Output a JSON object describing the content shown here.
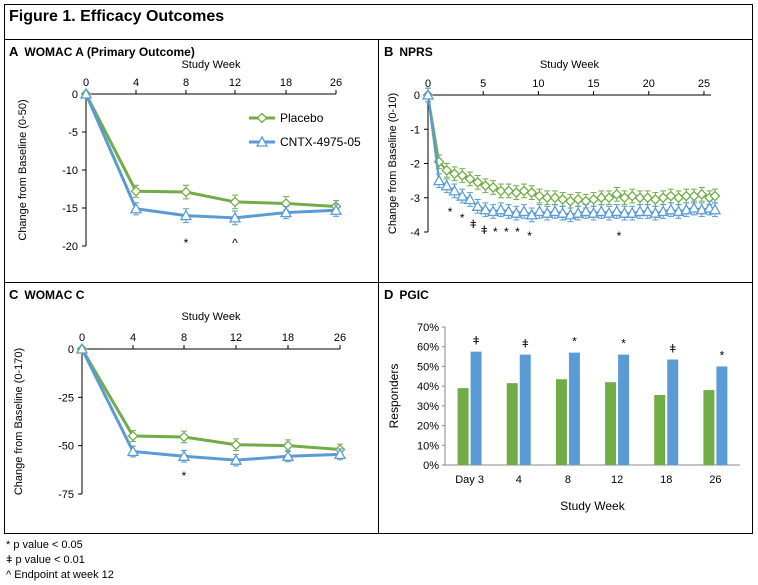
{
  "figure_title": "Figure 1. Efficacy Outcomes",
  "footnotes": [
    "* p value < 0.05",
    "ǂ p value < 0.01",
    "^ Endpoint at week 12"
  ],
  "colors": {
    "placebo": "#70ad47",
    "cntx": "#5b9bd5"
  },
  "panels": {
    "A": {
      "letter": "A",
      "title": "WOMAC A (Primary Outcome)"
    },
    "B": {
      "letter": "B",
      "title": "NPRS"
    },
    "C": {
      "letter": "C",
      "title": "WOMAC C"
    },
    "D": {
      "letter": "D",
      "title": "PGIC"
    }
  },
  "chart_data": [
    {
      "id": "A",
      "type": "line",
      "title": "WOMAC A (Primary Outcome)",
      "xlabel": "Study Week",
      "ylabel": "Change from Baseline (0-50)",
      "x": [
        0,
        4,
        8,
        12,
        18,
        26
      ],
      "x_ticks": [
        "0",
        "4",
        "8",
        "12",
        "18",
        "26"
      ],
      "y_ticks": [
        0,
        -5,
        -10,
        -15,
        -20
      ],
      "ylim": [
        -20,
        0
      ],
      "legend": "upper right inside plot",
      "series": [
        {
          "name": "Placebo",
          "color": "#70ad47",
          "marker": "diamond",
          "values": [
            0,
            -12.8,
            -12.9,
            -14.2,
            -14.4,
            -14.8
          ],
          "error": [
            0,
            0.8,
            0.9,
            0.9,
            0.9,
            0.8
          ]
        },
        {
          "name": "CNTX-4975-05",
          "color": "#5b9bd5",
          "marker": "triangle",
          "values": [
            0,
            -15.1,
            -16.0,
            -16.3,
            -15.6,
            -15.3
          ],
          "error": [
            0,
            0.8,
            0.9,
            0.9,
            0.8,
            0.8
          ]
        }
      ],
      "annotations": [
        {
          "x": 8,
          "text": "*"
        },
        {
          "x": 12,
          "text": "^"
        }
      ]
    },
    {
      "id": "B",
      "type": "line",
      "title": "NPRS",
      "xlabel": "Study Week",
      "ylabel": "Change from Baseline (0-10)",
      "x_ticks": [
        0,
        5,
        10,
        15,
        20,
        25
      ],
      "y_ticks": [
        0,
        -1,
        -2,
        -3,
        -4
      ],
      "ylim": [
        -4,
        0
      ],
      "xlim": [
        0,
        26
      ],
      "series": [
        {
          "name": "Placebo",
          "color": "#70ad47",
          "marker": "diamond",
          "x": [
            0,
            1,
            1.7,
            2.4,
            3.1,
            3.8,
            4.5,
            5.2,
            5.9,
            6.6,
            7.3,
            8,
            8.7,
            9.4,
            10.1,
            10.8,
            11.5,
            12.2,
            12.9,
            13.6,
            14.3,
            15,
            15.7,
            16.4,
            17.1,
            17.8,
            18.5,
            19.2,
            19.9,
            20.6,
            21.3,
            22,
            22.7,
            23.4,
            24.1,
            24.8,
            25.5,
            26
          ],
          "values": [
            0,
            -1.95,
            -2.2,
            -2.3,
            -2.35,
            -2.45,
            -2.55,
            -2.65,
            -2.7,
            -2.8,
            -2.8,
            -2.85,
            -2.8,
            -2.85,
            -2.95,
            -3.0,
            -3.0,
            -3.05,
            -3.1,
            -3.05,
            -3.1,
            -3.05,
            -3.0,
            -3.0,
            -2.9,
            -3.0,
            -2.95,
            -3.0,
            -3.0,
            -3.05,
            -3.0,
            -2.95,
            -3.0,
            -2.95,
            -2.95,
            -2.9,
            -3.0,
            -2.95
          ],
          "error": 0.2
        },
        {
          "name": "CNTX-4975-05",
          "color": "#5b9bd5",
          "marker": "triangle",
          "x": [
            0,
            1,
            1.7,
            2.4,
            3.1,
            3.8,
            4.5,
            5.2,
            5.9,
            6.6,
            7.3,
            8,
            8.7,
            9.4,
            10.1,
            10.8,
            11.5,
            12.2,
            12.9,
            13.6,
            14.3,
            15,
            15.7,
            16.4,
            17.1,
            17.8,
            18.5,
            19.2,
            19.9,
            20.6,
            21.3,
            22,
            22.7,
            23.4,
            24.1,
            24.8,
            25.5,
            26
          ],
          "values": [
            0,
            -2.5,
            -2.65,
            -2.8,
            -2.95,
            -3.05,
            -3.25,
            -3.35,
            -3.4,
            -3.35,
            -3.4,
            -3.45,
            -3.4,
            -3.5,
            -3.4,
            -3.45,
            -3.4,
            -3.45,
            -3.5,
            -3.45,
            -3.4,
            -3.45,
            -3.4,
            -3.45,
            -3.4,
            -3.45,
            -3.45,
            -3.4,
            -3.4,
            -3.45,
            -3.4,
            -3.35,
            -3.4,
            -3.35,
            -3.3,
            -3.35,
            -3.3,
            -3.35
          ],
          "error": 0.2
        }
      ],
      "annotations": [
        {
          "x": 2.0,
          "text": "*"
        },
        {
          "x": 3.1,
          "text": "*"
        },
        {
          "x": 4.1,
          "text": "ǂ"
        },
        {
          "x": 5.1,
          "text": "ǂ"
        },
        {
          "x": 6.1,
          "text": "*"
        },
        {
          "x": 7.1,
          "text": "*"
        },
        {
          "x": 8.1,
          "text": "*"
        },
        {
          "x": 9.2,
          "text": "*"
        },
        {
          "x": 17.3,
          "text": "*"
        }
      ]
    },
    {
      "id": "C",
      "type": "line",
      "title": "WOMAC C",
      "xlabel": "Study Week",
      "ylabel": "Change from Baseline (0-170)",
      "x": [
        0,
        4,
        8,
        12,
        18,
        26
      ],
      "x_ticks": [
        "0",
        "4",
        "8",
        "12",
        "18",
        "26"
      ],
      "y_ticks": [
        0,
        -25,
        -50,
        -75
      ],
      "ylim": [
        -75,
        0
      ],
      "series": [
        {
          "name": "Placebo",
          "color": "#70ad47",
          "marker": "diamond",
          "values": [
            0,
            -45,
            -45.5,
            -49.5,
            -50,
            -52
          ],
          "error": [
            0,
            2.8,
            3,
            3,
            3,
            2.8
          ]
        },
        {
          "name": "CNTX-4975-05",
          "color": "#5b9bd5",
          "marker": "triangle",
          "values": [
            0,
            -53,
            -55.5,
            -57.5,
            -55.5,
            -54.5
          ],
          "error": [
            0,
            2.8,
            3,
            3,
            2.8,
            2.8
          ]
        }
      ],
      "annotations": [
        {
          "x": 8,
          "text": "*"
        }
      ]
    },
    {
      "id": "D",
      "type": "bar",
      "title": "PGIC",
      "xlabel": "Study Week",
      "ylabel": "Responders",
      "categories": [
        "Day 3",
        "4",
        "8",
        "12",
        "18",
        "26"
      ],
      "y_ticks": [
        "0%",
        "10%",
        "20%",
        "30%",
        "40%",
        "50%",
        "60%",
        "70%"
      ],
      "ylim": [
        0,
        70
      ],
      "series": [
        {
          "name": "Placebo",
          "color": "#70ad47",
          "values": [
            39,
            41.5,
            43.5,
            42,
            35.5,
            38
          ]
        },
        {
          "name": "CNTX-4975-05",
          "color": "#5b9bd5",
          "values": [
            57.5,
            56,
            57,
            56,
            53.5,
            50
          ]
        }
      ],
      "annotations": [
        "ǂ",
        "ǂ",
        "*",
        "*",
        "ǂ",
        "*"
      ]
    }
  ]
}
